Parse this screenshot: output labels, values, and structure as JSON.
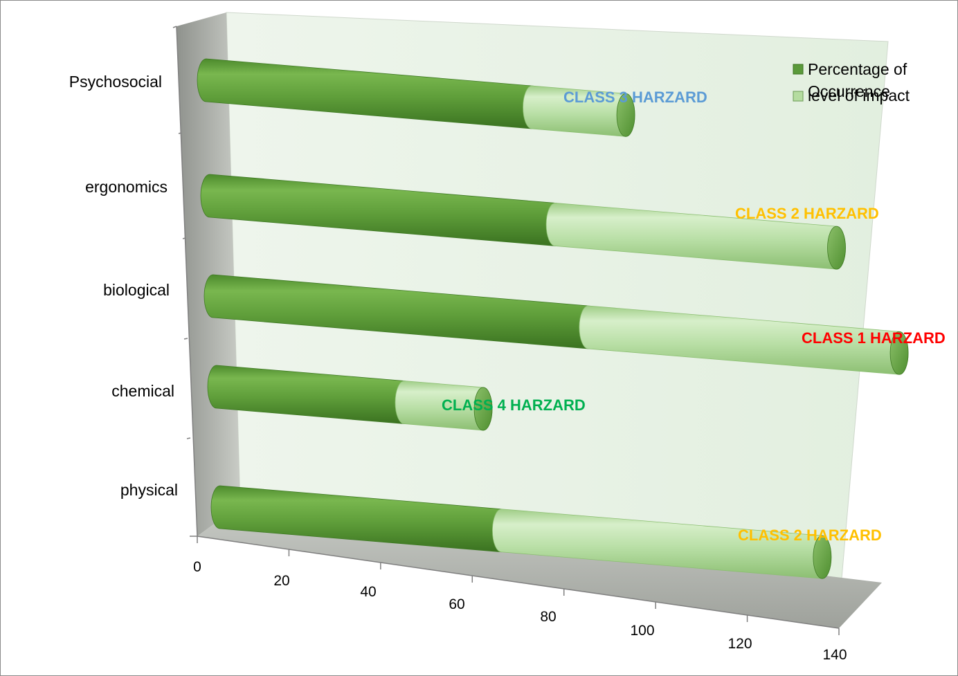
{
  "chart_data": {
    "type": "bar",
    "orientation": "horizontal",
    "stacked": true,
    "style": "3d-cylinder",
    "categories": [
      "physical",
      "chemical",
      "biological",
      "ergonomics",
      "Psychosocial"
    ],
    "series": [
      {
        "name": "Percentage of Occurrence",
        "values": [
          57,
          38,
          76,
          70,
          66
        ],
        "color": "#5a9a3a"
      },
      {
        "name": "level of impact",
        "values": [
          65,
          16,
          63,
          57,
          19
        ],
        "color": "#b5dca0"
      }
    ],
    "annotations": [
      {
        "category": "physical",
        "text": "CLASS 2 HARZARD",
        "color": "#ffc000"
      },
      {
        "category": "chemical",
        "text": "CLASS 4 HARZARD",
        "color": "#00b050"
      },
      {
        "category": "biological",
        "text": "CLASS 1 HARZARD",
        "color": "#ff0000"
      },
      {
        "category": "ergonomics",
        "text": "CLASS 2 HARZARD",
        "color": "#ffc000"
      },
      {
        "category": "Psychosocial",
        "text": "CLASS 3 HARZARD",
        "color": "#5b9bd5"
      }
    ],
    "xaxis": {
      "min": 0,
      "max": 140,
      "step": 20,
      "ticks": [
        "0",
        "20",
        "40",
        "60",
        "80",
        "100",
        "120",
        "140"
      ]
    },
    "title": "",
    "xlabel": "",
    "ylabel": "",
    "legend": {
      "position": "top-right",
      "entries": [
        "Percentage of Occurrence",
        "level of impact"
      ]
    },
    "grid": false
  }
}
